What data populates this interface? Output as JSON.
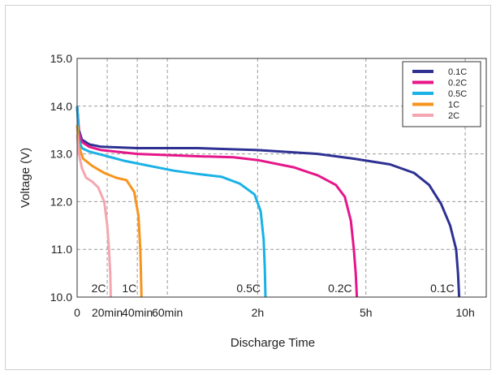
{
  "chart_data": {
    "type": "line",
    "title": "",
    "xlabel": "Discharge Time",
    "ylabel": "Voltage (V)",
    "ylim": [
      10.0,
      15.0
    ],
    "grid": true,
    "legend_position": "top-right",
    "y_ticks": [
      "10.0",
      "11.0",
      "12.0",
      "13.0",
      "14.0",
      "15.0"
    ],
    "x_ticks": [
      "0",
      "20min",
      "40min",
      "60min",
      "2h",
      "5h",
      "10h"
    ],
    "series": [
      {
        "name": "0.1C",
        "color": "#2e3192",
        "end_label": "0.1C",
        "points": [
          [
            0,
            14.0
          ],
          [
            0.03,
            13.5
          ],
          [
            0.08,
            13.3
          ],
          [
            0.2,
            13.2
          ],
          [
            0.4,
            13.15
          ],
          [
            1.0,
            13.12
          ],
          [
            2.0,
            13.12
          ],
          [
            3.0,
            13.08
          ],
          [
            4.0,
            13.0
          ],
          [
            4.6,
            12.9
          ],
          [
            5.2,
            12.78
          ],
          [
            5.6,
            12.6
          ],
          [
            5.85,
            12.35
          ],
          [
            6.05,
            11.95
          ],
          [
            6.2,
            11.5
          ],
          [
            6.3,
            11.0
          ],
          [
            6.33,
            10.5
          ],
          [
            6.35,
            10.0
          ]
        ]
      },
      {
        "name": "0.2C",
        "color": "#e6168a",
        "end_label": "0.2C",
        "points": [
          [
            0,
            14.0
          ],
          [
            0.03,
            13.45
          ],
          [
            0.08,
            13.25
          ],
          [
            0.2,
            13.15
          ],
          [
            0.4,
            13.08
          ],
          [
            1.0,
            13.0
          ],
          [
            2.0,
            12.95
          ],
          [
            2.6,
            12.93
          ],
          [
            3.0,
            12.87
          ],
          [
            3.6,
            12.72
          ],
          [
            4.0,
            12.55
          ],
          [
            4.3,
            12.35
          ],
          [
            4.45,
            12.1
          ],
          [
            4.55,
            11.6
          ],
          [
            4.6,
            11.0
          ],
          [
            4.63,
            10.5
          ],
          [
            4.65,
            10.0
          ]
        ]
      },
      {
        "name": "0.5C",
        "color": "#1ab1e6",
        "end_label": "0.5C",
        "points": [
          [
            0,
            14.0
          ],
          [
            0.03,
            13.3
          ],
          [
            0.08,
            13.12
          ],
          [
            0.2,
            13.05
          ],
          [
            0.5,
            12.95
          ],
          [
            0.8,
            12.85
          ],
          [
            1.2,
            12.75
          ],
          [
            1.6,
            12.65
          ],
          [
            2.0,
            12.58
          ],
          [
            2.4,
            12.52
          ],
          [
            2.7,
            12.38
          ],
          [
            2.95,
            12.15
          ],
          [
            3.05,
            11.8
          ],
          [
            3.1,
            11.2
          ],
          [
            3.12,
            10.6
          ],
          [
            3.13,
            10.0
          ]
        ]
      },
      {
        "name": "1C",
        "color": "#f7941d",
        "end_label": "1C",
        "points": [
          [
            0,
            13.6
          ],
          [
            0.03,
            13.15
          ],
          [
            0.1,
            12.9
          ],
          [
            0.25,
            12.75
          ],
          [
            0.45,
            12.6
          ],
          [
            0.65,
            12.5
          ],
          [
            0.82,
            12.45
          ],
          [
            0.95,
            12.2
          ],
          [
            1.02,
            11.7
          ],
          [
            1.05,
            11.0
          ],
          [
            1.06,
            10.5
          ],
          [
            1.07,
            10.0
          ]
        ]
      },
      {
        "name": "2C",
        "color": "#f4a6b0",
        "end_label": "2C",
        "points": [
          [
            0,
            13.4
          ],
          [
            0.03,
            13.0
          ],
          [
            0.08,
            12.7
          ],
          [
            0.15,
            12.5
          ],
          [
            0.25,
            12.42
          ],
          [
            0.35,
            12.3
          ],
          [
            0.45,
            12.0
          ],
          [
            0.5,
            11.5
          ],
          [
            0.53,
            11.0
          ],
          [
            0.55,
            10.5
          ],
          [
            0.56,
            10.0
          ]
        ]
      }
    ]
  }
}
